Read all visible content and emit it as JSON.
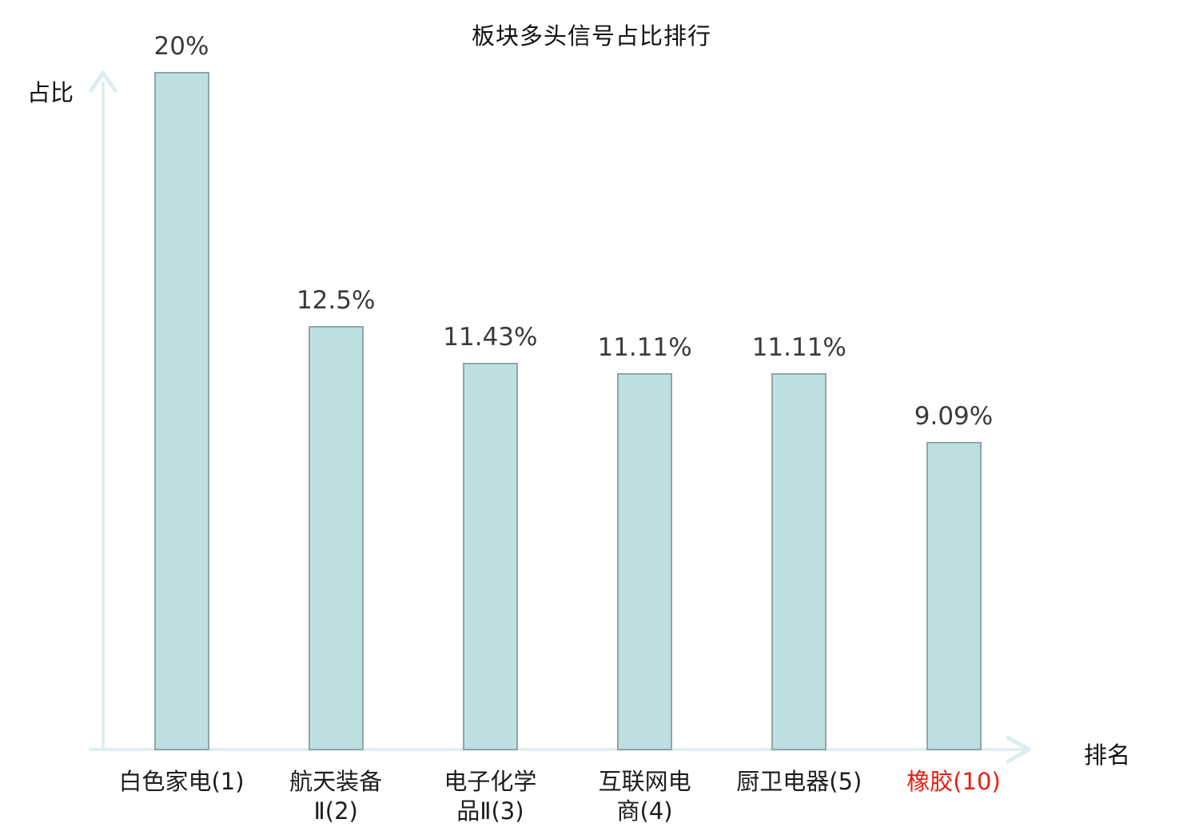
{
  "colors": {
    "background": "#ffffff",
    "bar_fill": "#bfe0e3",
    "bar_border": "#8fa6ab",
    "axis": "#dceef0",
    "value_label": "#3a3a3a",
    "category_label": "#1d1d1d",
    "highlight": "#e8200f",
    "title": "#111111"
  },
  "chart_data": {
    "type": "bar",
    "title": "板块多头信号占比排行",
    "xlabel": "排名",
    "ylabel": "占比",
    "ylim": [
      0,
      20
    ],
    "grid": false,
    "legend": "none",
    "categories": [
      "白色家电(1)",
      "航天装备Ⅱ(2)",
      "电子化学品Ⅱ(3)",
      "互联网电商(4)",
      "厨卫电器(5)",
      "橡胶(10)"
    ],
    "category_lines": [
      [
        "白色家电(1)"
      ],
      [
        "航天装备",
        "Ⅱ(2)"
      ],
      [
        "电子化学",
        "品Ⅱ(3)"
      ],
      [
        "互联网电",
        "商(4)"
      ],
      [
        "厨卫电器(5)"
      ],
      [
        "橡胶(10)"
      ]
    ],
    "values": [
      20,
      12.5,
      11.43,
      11.11,
      11.11,
      9.09
    ],
    "value_labels": [
      "20%",
      "12.5%",
      "11.43%",
      "11.11%",
      "11.11%",
      "9.09%"
    ],
    "highlighted_category_index": 5
  }
}
